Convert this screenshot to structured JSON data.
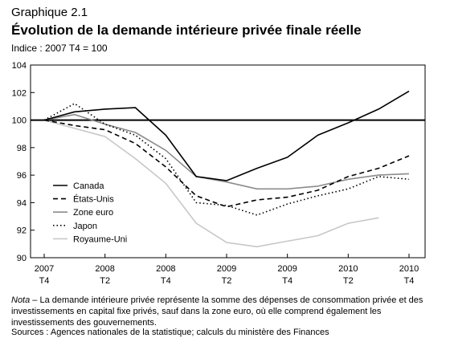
{
  "header": {
    "kicker": "Graphique 2.1",
    "title": "Évolution de la demande intérieure privée finale réelle",
    "subtitle": "Indice : 2007 T4 = 100"
  },
  "footer": {
    "note_label": "Nota",
    "note_text": " – La demande intérieure privée représente la somme des dépenses de consommation privée et des investissements en capital fixe privés, sauf dans la zone euro, où elle comprend également les investissements des gouvernements.",
    "sources": "Sources : Agences nationales de la statistique; calculs du ministère des Finances"
  },
  "chart_data": {
    "type": "line",
    "ylim": [
      90,
      104
    ],
    "yticks": [
      90,
      92,
      94,
      96,
      98,
      100,
      102,
      104
    ],
    "x_ticks": [
      {
        "year": "2007",
        "q": "T4",
        "index": 0
      },
      {
        "year": "2008",
        "q": "T2",
        "index": 2
      },
      {
        "year": "2008",
        "q": "T4",
        "index": 4
      },
      {
        "year": "2009",
        "q": "T2",
        "index": 6
      },
      {
        "year": "2009",
        "q": "T4",
        "index": 8
      },
      {
        "year": "2010",
        "q": "T2",
        "index": 10
      },
      {
        "year": "2010",
        "q": "T4",
        "index": 12
      }
    ],
    "quarters": [
      "2007 T4",
      "2008 T1",
      "2008 T2",
      "2008 T3",
      "2008 T4",
      "2009 T1",
      "2009 T2",
      "2009 T3",
      "2009 T4",
      "2010 T1",
      "2010 T2",
      "2010 T3",
      "2010 T4"
    ],
    "reference_line": 100,
    "series": [
      {
        "name": "Canada",
        "style": "solid",
        "color": "#000000",
        "values": [
          100,
          100.6,
          100.8,
          100.9,
          98.9,
          95.9,
          95.6,
          96.5,
          97.3,
          98.9,
          99.8,
          100.8,
          102.1
        ]
      },
      {
        "name": "États-Unis",
        "style": "dashed",
        "color": "#000000",
        "values": [
          100,
          99.6,
          99.3,
          98.3,
          96.6,
          94.5,
          93.7,
          94.2,
          94.4,
          94.9,
          95.9,
          96.5,
          97.4
        ]
      },
      {
        "name": "Zone euro",
        "style": "solid",
        "color": "#8c8c8c",
        "values": [
          100,
          100.4,
          99.7,
          99.1,
          97.8,
          95.9,
          95.5,
          95.0,
          95.0,
          95.2,
          95.7,
          96.0,
          96.1
        ]
      },
      {
        "name": "Japon",
        "style": "dotted",
        "color": "#000000",
        "values": [
          100,
          101.2,
          99.7,
          98.9,
          97.2,
          94.0,
          93.8,
          93.1,
          93.9,
          94.5,
          95.0,
          95.9,
          95.7
        ]
      },
      {
        "name": "Royaume-Uni",
        "style": "solid",
        "color": "#c8c8c8",
        "values": [
          100,
          99.4,
          98.8,
          97.2,
          95.4,
          92.5,
          91.1,
          90.8,
          91.2,
          91.6,
          92.5,
          92.9,
          null
        ]
      }
    ]
  }
}
